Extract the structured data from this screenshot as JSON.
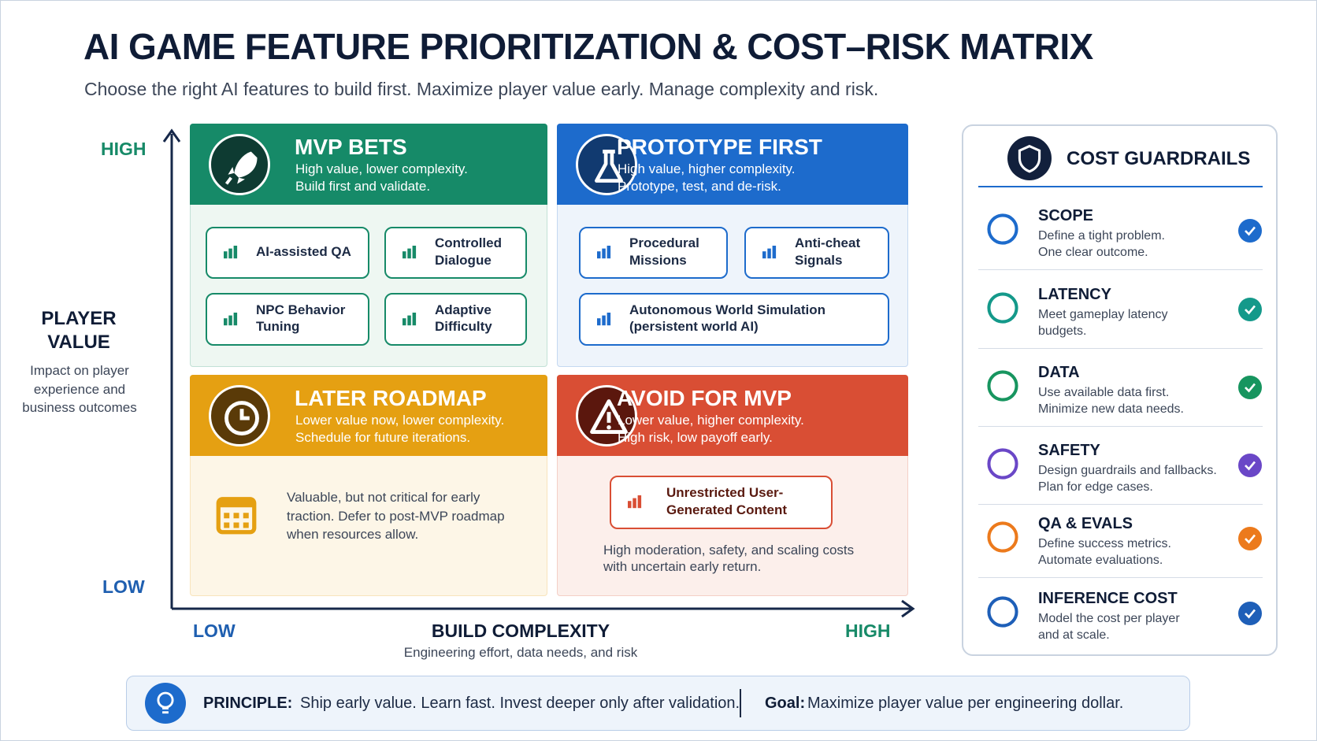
{
  "header": {
    "title": "AI GAME FEATURE PRIORITIZATION & COST–RISK MATRIX",
    "subtitle": "Choose the right AI features to build first. Maximize player value early. Manage complexity and risk."
  },
  "axes": {
    "y_high": "HIGH",
    "y_low": "LOW",
    "y_title": [
      "PLAYER",
      "VALUE"
    ],
    "y_description": [
      "Impact on player",
      "experience and",
      "business outcomes"
    ],
    "x_low": "LOW",
    "x_title": "BUILD COMPLEXITY",
    "x_description": "Engineering effort, data needs, and risk",
    "x_high": "HIGH"
  },
  "quadrants": [
    {
      "title": "MVP BETS",
      "description": [
        "High value, lower complexity.",
        "Build first and validate."
      ],
      "features": [
        [
          "AI-assisted QA"
        ],
        [
          "Controlled",
          "Dialogue"
        ],
        [
          "NPC Behavior",
          "Tuning"
        ],
        [
          "Adaptive",
          "Difficulty"
        ]
      ]
    },
    {
      "title": "PROTOTYPE FIRST",
      "description": [
        "High value, higher complexity.",
        "Prototype, test, and de-risk."
      ],
      "features": [
        [
          "Procedural",
          "Missions"
        ],
        [
          "Anti-cheat",
          "Signals"
        ],
        [
          "Autonomous World Simulation",
          "(persistent world AI)"
        ]
      ]
    },
    {
      "title": "LATER ROADMAP",
      "description": [
        "Lower value now, lower complexity.",
        "Schedule for future iterations."
      ],
      "note": [
        "Valuable, but not critical for early",
        "traction. Defer to post-MVP roadmap",
        "when resources allow."
      ]
    },
    {
      "title": "AVOID FOR MVP",
      "description": [
        "Lower value, higher complexity.",
        "High risk, low payoff early."
      ],
      "features": [
        [
          "Unrestricted User-",
          "Generated Content"
        ]
      ],
      "note": [
        "High moderation, safety, and scaling costs",
        "with uncertain early return."
      ]
    }
  ],
  "guardrails": {
    "title": "COST GUARDRAILS",
    "items": [
      {
        "title": "SCOPE",
        "lines": [
          "Define a tight problem.",
          "One clear outcome."
        ]
      },
      {
        "title": "LATENCY",
        "lines": [
          "Meet gameplay latency",
          "budgets."
        ]
      },
      {
        "title": "DATA",
        "lines": [
          "Use available data first.",
          "Minimize new data needs."
        ]
      },
      {
        "title": "SAFETY",
        "lines": [
          "Design guardrails and fallbacks.",
          "Plan for edge cases."
        ]
      },
      {
        "title": "QA & EVALS",
        "lines": [
          "Define success metrics.",
          "Automate evaluations."
        ]
      },
      {
        "title": "INFERENCE COST",
        "lines": [
          "Model the cost per player",
          "and at scale."
        ]
      }
    ]
  },
  "footer": {
    "principle_label": "PRINCIPLE:",
    "principle": "Ship early value. Learn fast. Invest deeper only after validation.",
    "goal_label": "Goal:",
    "goal": "Maximize player value per engineering dollar."
  }
}
